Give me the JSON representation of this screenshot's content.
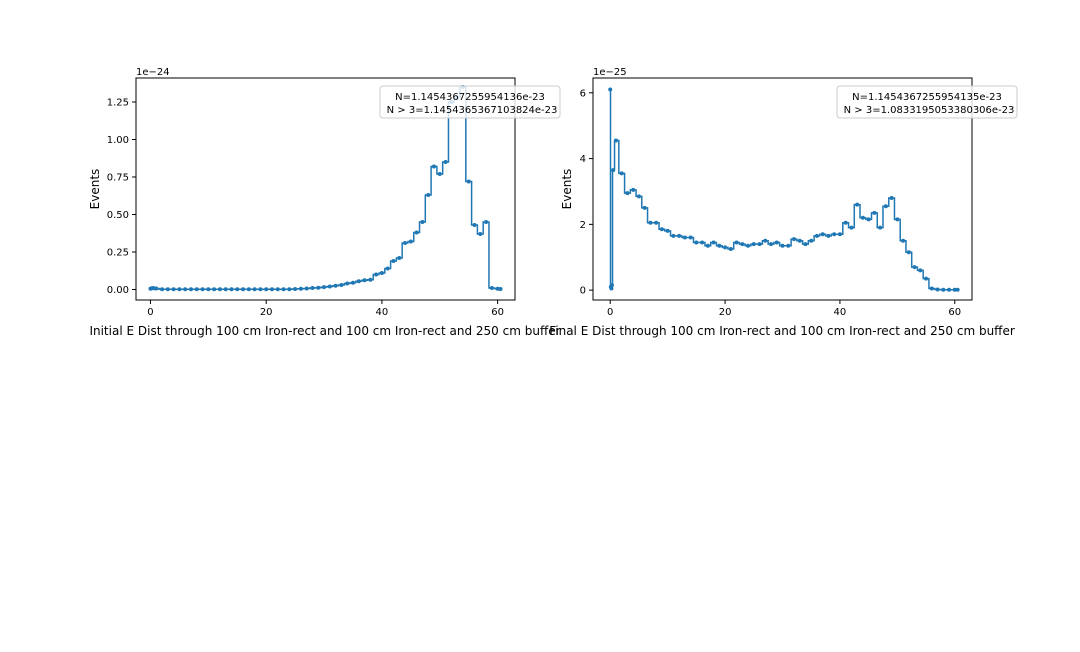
{
  "chart_data": [
    {
      "type": "line",
      "drawstyle": "steps-mid",
      "marker": "dot",
      "color": "#1f77b4",
      "xlabel": "Initial E Dist through 100 cm Iron-rect and 100 cm Iron-rect and 250 cm buffer",
      "ylabel": "Events",
      "offset_text": "1e−24",
      "scale": 1e-24,
      "xlim": [
        -2.5,
        63
      ],
      "ylim": [
        -0.07,
        1.41
      ],
      "xticks": [
        0,
        20,
        40,
        60
      ],
      "yticks": [
        0.0,
        0.25,
        0.5,
        0.75,
        1.0,
        1.25
      ],
      "ytick_labels": [
        "0.00",
        "0.25",
        "0.50",
        "0.75",
        "1.00",
        "1.25"
      ],
      "legend_lines": [
        "N=1.1454367255954136e-23",
        "N > 3=1.1454365367103824e-23"
      ],
      "legend_placement": "upper right",
      "grid": false,
      "x": [
        0,
        0.2,
        0.4,
        0.6,
        1,
        2,
        3,
        4,
        5,
        6,
        7,
        8,
        9,
        10,
        11,
        12,
        13,
        14,
        15,
        16,
        17,
        18,
        19,
        20,
        21,
        22,
        23,
        24,
        25,
        26,
        27,
        28,
        29,
        30,
        31,
        32,
        33,
        34,
        35,
        36,
        37,
        38,
        39,
        40,
        41,
        42,
        43,
        44,
        45,
        46,
        47,
        48,
        49,
        50,
        51,
        52,
        53,
        54,
        55,
        56,
        57,
        58,
        59,
        60,
        60.5
      ],
      "y": [
        0.005,
        0.008,
        0.009,
        0.008,
        0.007,
        0.002,
        0.002,
        0.002,
        0.002,
        0.002,
        0.002,
        0.002,
        0.002,
        0.002,
        0.002,
        0.002,
        0.002,
        0.002,
        0.002,
        0.002,
        0.002,
        0.002,
        0.002,
        0.002,
        0.002,
        0.002,
        0.002,
        0.002,
        0.003,
        0.005,
        0.007,
        0.01,
        0.012,
        0.016,
        0.02,
        0.025,
        0.03,
        0.04,
        0.045,
        0.055,
        0.062,
        0.065,
        0.1,
        0.11,
        0.14,
        0.19,
        0.21,
        0.31,
        0.32,
        0.38,
        0.45,
        0.63,
        0.82,
        0.77,
        0.85,
        1.25,
        1.28,
        1.35,
        0.72,
        0.43,
        0.37,
        0.45,
        0.01,
        0.005,
        0.003
      ]
    },
    {
      "type": "line",
      "drawstyle": "steps-mid",
      "marker": "dot",
      "color": "#1f77b4",
      "xlabel": "Final E Dist through 100 cm Iron-rect and 100 cm Iron-rect and 250 cm buffer",
      "ylabel": "Events",
      "offset_text": "1e−25",
      "scale": 1e-25,
      "xlim": [
        -3,
        63
      ],
      "ylim": [
        -0.3,
        6.45
      ],
      "xticks": [
        0,
        20,
        40,
        60
      ],
      "yticks": [
        0,
        2,
        4,
        6
      ],
      "ytick_labels": [
        "0",
        "2",
        "4",
        "6"
      ],
      "legend_lines": [
        "N=1.1454367255954135e-23",
        "N > 3=1.0833195053380306e-23"
      ],
      "legend_placement": "upper right",
      "grid": false,
      "x": [
        0,
        0.1,
        0.2,
        0.3,
        0.5,
        1,
        2,
        3,
        4,
        5,
        6,
        7,
        8,
        9,
        10,
        11,
        12,
        13,
        14,
        15,
        16,
        17,
        18,
        19,
        20,
        21,
        22,
        23,
        24,
        25,
        26,
        27,
        28,
        29,
        30,
        31,
        32,
        33,
        34,
        35,
        36,
        37,
        38,
        39,
        40,
        41,
        42,
        43,
        44,
        45,
        46,
        47,
        48,
        49,
        50,
        51,
        52,
        53,
        54,
        55,
        56,
        57,
        58,
        59,
        60,
        60.5
      ],
      "y": [
        6.1,
        0.1,
        0.05,
        0.15,
        3.65,
        4.55,
        3.55,
        2.95,
        3.05,
        2.85,
        2.5,
        2.05,
        2.05,
        1.85,
        1.8,
        1.65,
        1.65,
        1.6,
        1.6,
        1.45,
        1.45,
        1.35,
        1.45,
        1.35,
        1.3,
        1.25,
        1.45,
        1.4,
        1.35,
        1.4,
        1.4,
        1.5,
        1.4,
        1.45,
        1.35,
        1.35,
        1.55,
        1.5,
        1.4,
        1.5,
        1.65,
        1.7,
        1.65,
        1.7,
        1.7,
        2.05,
        1.9,
        2.6,
        2.2,
        2.15,
        2.35,
        1.9,
        2.55,
        2.8,
        2.15,
        1.5,
        1.15,
        0.7,
        0.6,
        0.35,
        0.05,
        0.02,
        0.01,
        0.01,
        0.01,
        0.01
      ]
    }
  ]
}
